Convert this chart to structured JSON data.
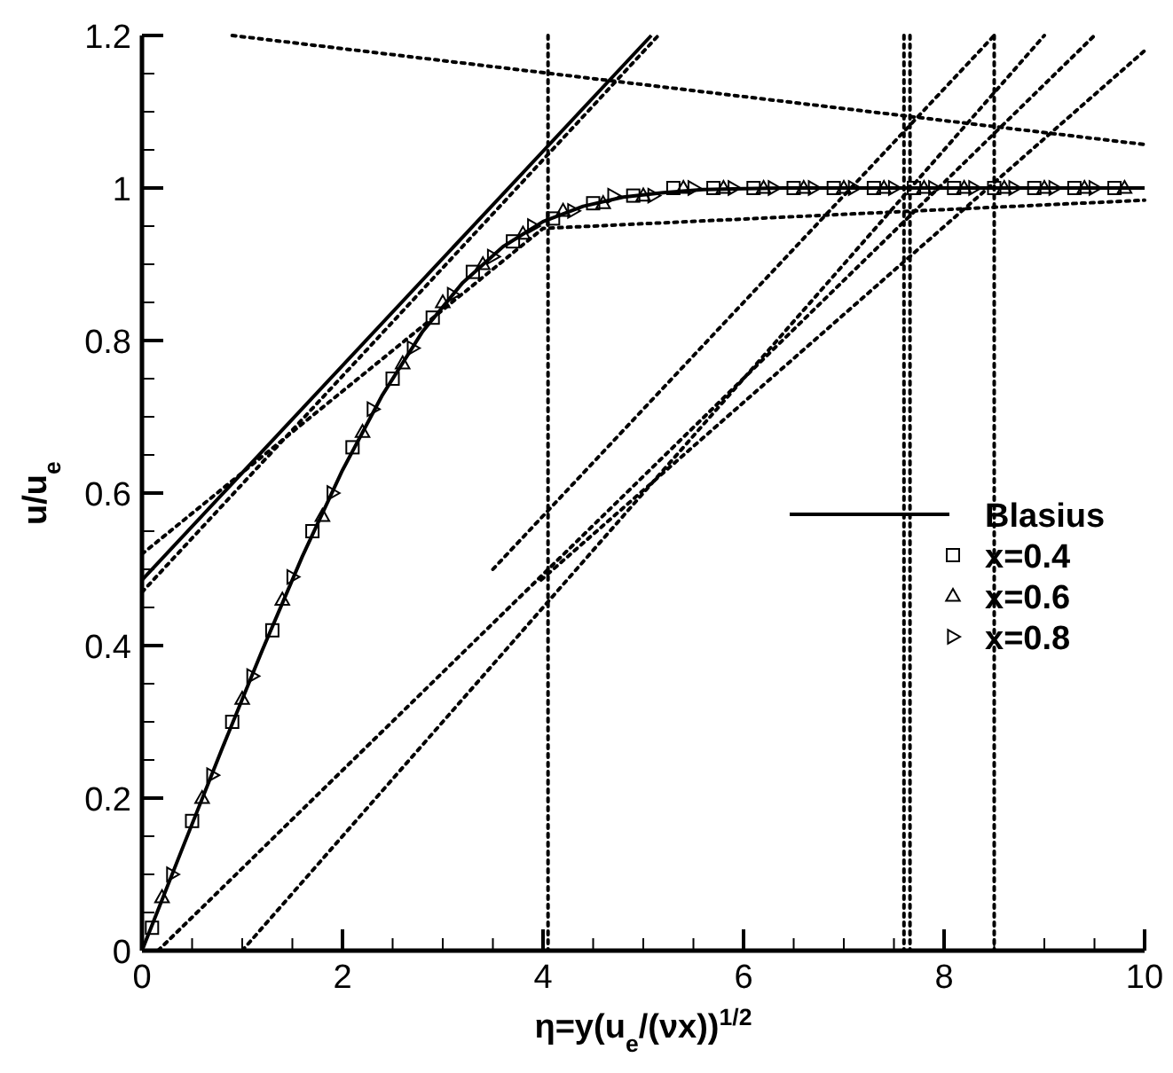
{
  "chart_data": {
    "type": "line",
    "xlabel": "η=y(u$_{e}$/(νx))$^{1/2}$",
    "ylabel": "u/u$_{e}$",
    "xlim": [
      0,
      10
    ],
    "ylim": [
      0,
      1.2
    ],
    "xticks": [
      0,
      {
        "value": 0.5,
        "label": null
      },
      {
        "value": 1,
        "label": null
      },
      {
        "value": 1.5,
        "label": null
      },
      2,
      {
        "value": 2.5,
        "label": null
      },
      {
        "value": 3,
        "label": null
      },
      {
        "value": 3.5,
        "label": null
      },
      4,
      {
        "value": 4.5,
        "label": null
      },
      {
        "value": 5,
        "label": null
      },
      {
        "value": 5.5,
        "label": null
      },
      6,
      {
        "value": 6.5,
        "label": null
      },
      {
        "value": 7,
        "label": null
      },
      {
        "value": 7.5,
        "label": null
      },
      8,
      {
        "value": 8.5,
        "label": null
      },
      {
        "value": 9,
        "label": null
      },
      {
        "value": 9.5,
        "label": null
      },
      10
    ],
    "yticks": [
      0,
      {
        "value": 0.05,
        "label": null
      },
      {
        "value": 0.1,
        "label": null
      },
      {
        "value": 0.15,
        "label": null
      },
      0.2,
      {
        "value": 0.25,
        "label": null
      },
      {
        "value": 0.3,
        "label": null
      },
      {
        "value": 0.35,
        "label": null
      },
      0.4,
      {
        "value": 0.45,
        "label": null
      },
      {
        "value": 0.5,
        "label": null
      },
      {
        "value": 0.55,
        "label": null
      },
      0.6,
      {
        "value": 0.65,
        "label": null
      },
      {
        "value": 0.7,
        "label": null
      },
      {
        "value": 0.75,
        "label": null
      },
      0.8,
      {
        "value": 0.85,
        "label": null
      },
      {
        "value": 0.9,
        "label": null
      },
      {
        "value": 0.95,
        "label": null
      },
      1,
      {
        "value": 1.05,
        "label": null
      },
      {
        "value": 1.1,
        "label": null
      },
      {
        "value": 1.15,
        "label": null
      },
      1.2
    ],
    "grid": false,
    "legend": "right",
    "series": [
      {
        "name": "Blasius",
        "color": "#000000",
        "line_style": "solid",
        "x": [
          0,
          0.4,
          0.8,
          1.2,
          1.6,
          2.0,
          2.4,
          2.8,
          3.2,
          3.6,
          4.0,
          4.4,
          4.8,
          5.2,
          5.6,
          6.0,
          6.4,
          7.0,
          8.0,
          9.0,
          10.0
        ],
        "values": [
          0,
          0.133,
          0.265,
          0.394,
          0.517,
          0.63,
          0.729,
          0.812,
          0.876,
          0.923,
          0.956,
          0.976,
          0.988,
          0.994,
          0.998,
          0.999,
          1.0,
          1.0,
          1.0,
          1.0,
          1.0
        ]
      },
      {
        "name": "x=0.4",
        "type": "scatter",
        "color": "#000000",
        "marker": "square",
        "x": [
          0.1,
          0.5,
          0.9,
          1.3,
          1.7,
          2.1,
          2.5,
          2.9,
          3.3,
          3.7,
          4.1,
          4.5,
          4.9,
          5.3,
          5.7,
          6.1,
          6.5,
          6.9,
          7.3,
          7.7,
          8.1,
          8.5,
          8.9,
          9.3,
          9.7
        ],
        "values": [
          0.03,
          0.17,
          0.3,
          0.42,
          0.55,
          0.66,
          0.75,
          0.83,
          0.89,
          0.93,
          0.96,
          0.98,
          0.99,
          1.0,
          1.0,
          1.0,
          1.0,
          1.0,
          1.0,
          1.0,
          1.0,
          1.0,
          1.0,
          1.0,
          1.0
        ]
      },
      {
        "name": "x=0.6",
        "type": "scatter",
        "color": "#000000",
        "marker": "triangle",
        "x": [
          0.2,
          0.6,
          1.0,
          1.4,
          1.8,
          2.2,
          2.6,
          3.0,
          3.4,
          3.8,
          4.2,
          4.6,
          5.0,
          5.4,
          5.8,
          6.2,
          6.6,
          7.0,
          7.4,
          7.8,
          8.2,
          8.6,
          9.0,
          9.4,
          9.8
        ],
        "values": [
          0.07,
          0.2,
          0.33,
          0.46,
          0.57,
          0.68,
          0.77,
          0.85,
          0.9,
          0.94,
          0.97,
          0.98,
          0.99,
          1.0,
          1.0,
          1.0,
          1.0,
          1.0,
          1.0,
          1.0,
          1.0,
          1.0,
          1.0,
          1.0,
          1.0
        ]
      },
      {
        "name": "x=0.8",
        "type": "scatter",
        "color": "#000000",
        "marker": "triangle-right",
        "x": [
          0.3,
          0.7,
          1.1,
          1.5,
          1.9,
          2.3,
          2.7,
          3.1,
          3.5,
          3.9,
          4.3,
          4.7,
          5.1,
          5.5,
          5.9,
          6.3,
          6.7,
          7.1,
          7.5,
          7.9,
          8.3,
          8.7,
          9.1,
          9.5
        ],
        "values": [
          0.1,
          0.23,
          0.36,
          0.49,
          0.6,
          0.71,
          0.79,
          0.86,
          0.91,
          0.95,
          0.97,
          0.99,
          0.99,
          1.0,
          1.0,
          1.0,
          1.0,
          1.0,
          1.0,
          1.0,
          1.0,
          1.0,
          1.0,
          1.0
        ]
      },
      {
        "type": "line",
        "color": "#000000",
        "line_style": "solid",
        "x": [
          0,
          5.08
        ],
        "values": [
          0.486,
          1.2
        ]
      },
      {
        "type": "line",
        "color": "#000000",
        "line_style": "dotted",
        "x": [
          0,
          5.15
        ],
        "values": [
          0.47,
          1.2
        ]
      },
      {
        "type": "line",
        "color": "#000000",
        "line_style": "dotted",
        "x": [
          0,
          4.0,
          10
        ],
        "values": [
          0.52,
          0.947,
          0.984
        ]
      },
      {
        "type": "line",
        "color": "#000000",
        "line_style": "dotted",
        "x": [
          0.9,
          10
        ],
        "values": [
          1.2,
          1.057
        ]
      },
      {
        "type": "line",
        "color": "#000000",
        "line_style": "dotted",
        "x": [
          3.5,
          8.5
        ],
        "values": [
          0.5,
          1.2
        ]
      },
      {
        "type": "line",
        "color": "#000000",
        "line_style": "dotted",
        "x": [
          1.0,
          9.0
        ],
        "values": [
          0,
          1.2
        ]
      },
      {
        "type": "line",
        "color": "#000000",
        "line_style": "dotted",
        "x": [
          0.16,
          9.5
        ],
        "values": [
          0,
          1.2
        ]
      },
      {
        "type": "line",
        "color": "#000000",
        "line_style": "dotted",
        "x": [
          3.98,
          10
        ],
        "values": [
          0.486,
          1.18
        ]
      }
    ],
    "ref_lines": [
      {
        "axis": "x",
        "value": 4.05,
        "line_style": "dotted",
        "color": "#000000"
      },
      {
        "axis": "x",
        "value": 7.6,
        "line_style": "dotted",
        "color": "#000000"
      },
      {
        "axis": "x",
        "value": 7.66,
        "line_style": "dotted",
        "color": "#000000"
      },
      {
        "axis": "x",
        "value": 8.5,
        "line_style": "dotted",
        "color": "#000000"
      }
    ]
  }
}
